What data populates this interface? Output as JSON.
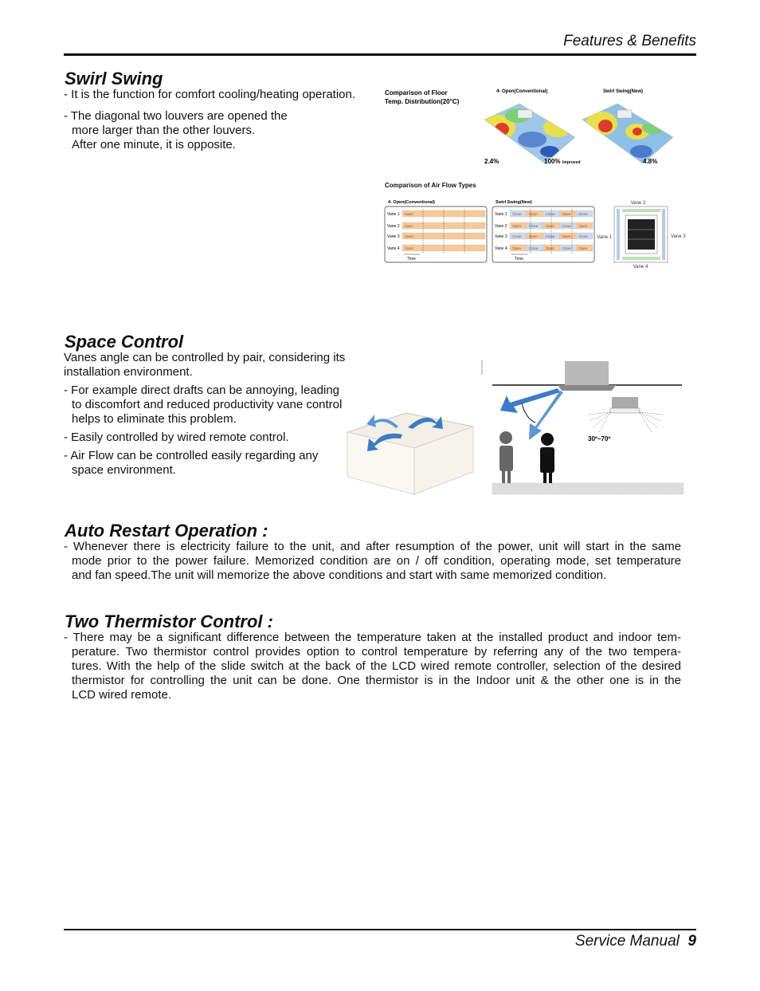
{
  "header": {
    "section": "Features & Benefits"
  },
  "sections": [
    {
      "title": "Swirl Swing",
      "items": [
        {
          "lines": [
            "- It is the function for comfort cooling/heating operation."
          ]
        },
        {
          "lines": [
            "- The diagonal two louvers are opened the",
            "more larger than the other louvers.",
            "After one minute, it is opposite."
          ]
        }
      ]
    },
    {
      "title": "Space Control",
      "items": [
        {
          "lines": [
            "Vanes angle can be controlled by pair, considering its",
            "installation environment."
          ]
        },
        {
          "lines": [
            "- For example direct drafts can be annoying, leading",
            "to discomfort and reduced productivity vane control",
            "helps to eliminate this problem."
          ]
        },
        {
          "lines": [
            "- Easily controlled by wired remote control."
          ]
        },
        {
          "lines": [
            "- Air Flow can be controlled easily regarding any",
            "space environment."
          ]
        }
      ]
    },
    {
      "title": "Auto Restart Operation :",
      "items": [
        {
          "lines": [
            "- Whenever there is electricity failure to the unit, and after resumption of the power, unit will start in the same",
            "mode prior to the power failure. Memorized condition are on / off condition, operating mode, set temperature",
            "and fan speed.The unit will memorize the above conditions and start with same memorized condition."
          ]
        }
      ]
    },
    {
      "title": "Two Thermistor Control :",
      "items": [
        {
          "lines": [
            "- There may be a significant difference between the temperature taken at the installed product and indoor tem-",
            "perature. Two thermistor control provides option to control temperature by referring any of the two tempera-",
            "tures. With the help of the slide switch at the back of the LCD wired remote controller, selection of the desired",
            "thermistor for controlling the unit can be done. One thermistor is in the Indoor unit & the other one is in the",
            "LCD wired remote."
          ]
        }
      ]
    }
  ],
  "floor_temp": {
    "title_lines": [
      "Comparison of Floor",
      "Temp. Distribution(20°C)"
    ],
    "conventional": "4- Open(Conventional)",
    "swirl": "Swirl Swing(New)",
    "left_value": "2.4%",
    "center_value": "100%",
    "center_note": "Improved",
    "right_value": "4.8%"
  },
  "airflow": {
    "title": "Comparison of Air Flow Types",
    "conventional": {
      "title": "4- Open(Conventional)",
      "time": "Time",
      "rows": [
        {
          "label": "Vane 1",
          "cells": [
            "Open"
          ]
        },
        {
          "label": "Vane 2",
          "cells": [
            "Open"
          ]
        },
        {
          "label": "Vane 3",
          "cells": [
            "Open"
          ]
        },
        {
          "label": "Vane 4",
          "cells": [
            "Open"
          ]
        }
      ]
    },
    "swirl": {
      "title": "Swirl Swing(New)",
      "time": "Time",
      "rows": [
        {
          "label": "Vane 1",
          "cells": [
            "Close",
            "Open",
            "Close",
            "Open",
            "Close"
          ]
        },
        {
          "label": "Vane 2",
          "cells": [
            "Open",
            "Close",
            "Open",
            "Close",
            "Open"
          ]
        },
        {
          "label": "Vane 3",
          "cells": [
            "Close",
            "Open",
            "Close",
            "Open",
            "Close"
          ]
        },
        {
          "label": "Vane 4",
          "cells": [
            "Open",
            "Close",
            "Open",
            "Close",
            "Open"
          ]
        }
      ]
    },
    "vanes": {
      "top": "Vane 2",
      "left": "Vane 1",
      "right": "Vane 3",
      "bottom": "Vane 4"
    }
  },
  "space_figure": {
    "angle": "30º~70º"
  },
  "footer": {
    "label": "Service Manual",
    "page": "9"
  }
}
